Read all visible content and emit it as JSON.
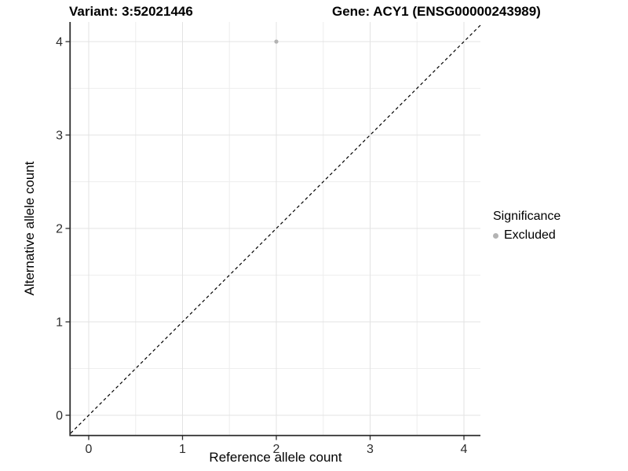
{
  "header": {
    "variant_title": "Variant: 3:52021446",
    "gene_title": "Gene: ACY1 (ENSG00000243989)"
  },
  "chart_data": {
    "type": "scatter",
    "title_left": "Variant: 3:52021446",
    "title_right": "Gene: ACY1 (ENSG00000243989)",
    "xlabel": "Reference allele count",
    "ylabel": "Alternative allele count",
    "xlim": [
      -0.2,
      4.2
    ],
    "ylim": [
      -0.2,
      4.2
    ],
    "x_ticks": [
      "0",
      "1",
      "2",
      "3",
      "4"
    ],
    "y_ticks": [
      "0",
      "1",
      "2",
      "3",
      "4"
    ],
    "minor_ticks": [
      0.5,
      1.5,
      2.5,
      3.5
    ],
    "grid": "on",
    "points": [
      {
        "x": 2,
        "y": 4,
        "series": "Excluded"
      }
    ],
    "identity_line": {
      "present": true,
      "slope": 1,
      "intercept": 0,
      "style": "dashed"
    },
    "legend": {
      "title": "Significance",
      "position": "right",
      "items": [
        {
          "label": "Excluded",
          "color": "#b3b3b3",
          "marker": "circle"
        }
      ]
    },
    "colors": {
      "point": "#b3b3b3",
      "grid_major": "#e3e3e3",
      "grid_minor": "#eeeeee",
      "axis_line": "#2e2e2e",
      "tick_label": "#2e2e2e",
      "dashed_line": "#000000",
      "background": "#ffffff"
    }
  }
}
